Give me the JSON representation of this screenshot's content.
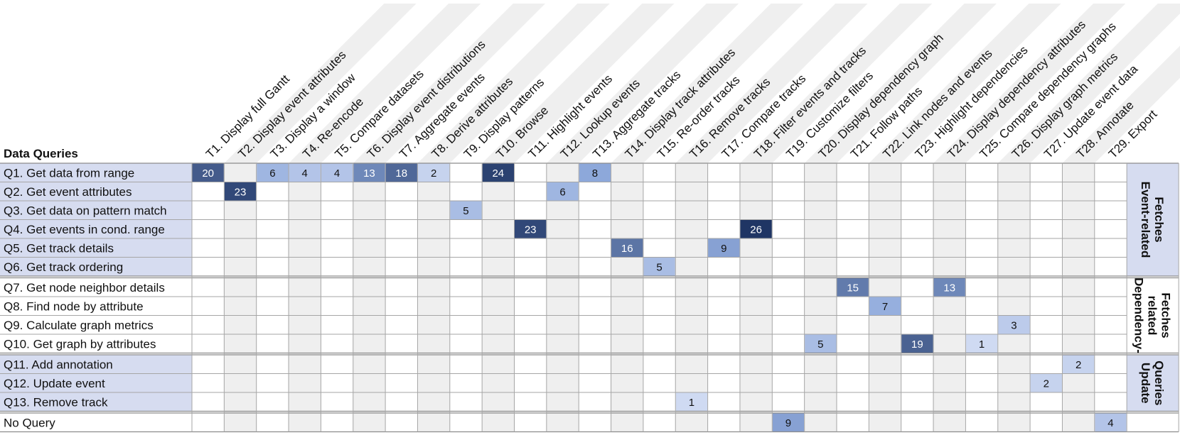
{
  "title": "Data Queries",
  "tasks": [
    "T1. Display full Gantt",
    "T2. Display event attributes",
    "T3. Display a window",
    "T4. Re-encode",
    "T5. Compare datasets",
    "T6. Display event distributions",
    "T7. Aggregate events",
    "T8. Derive attributes",
    "T9. Display patterns",
    "T10. Browse",
    "T11. Highlight events",
    "T12. Lookup events",
    "T13. Aggregate tracks",
    "T14. Display track attributes",
    "T15. Re-order tracks",
    "T16. Remove tracks",
    "T17. Compare tracks",
    "T18. Filter events and tracks",
    "T19. Customize filters",
    "T20. Display dependency graph",
    "T21. Follow paths",
    "T22. Link nodes and events",
    "T23. Highlight dependencies",
    "T24. Display dependency attributes",
    "T25. Compare dependency graphs",
    "T26. Display graph metrics",
    "T27. Update event data",
    "T28. Annotate",
    "T29. Export"
  ],
  "groups": [
    {
      "label_lines": [
        "Event-related",
        "Fetches"
      ],
      "shaded": true,
      "queries": [
        {
          "label": "Q1. Get data from range",
          "cells": [
            [
              1,
              "20"
            ],
            [
              3,
              "6"
            ],
            [
              4,
              "4"
            ],
            [
              5,
              "4"
            ],
            [
              6,
              "13"
            ],
            [
              7,
              "18"
            ],
            [
              8,
              "2"
            ],
            [
              10,
              "24"
            ],
            [
              13,
              "8"
            ]
          ]
        },
        {
          "label": "Q2. Get event attributes",
          "cells": [
            [
              2,
              "23"
            ],
            [
              12,
              "6"
            ]
          ]
        },
        {
          "label": "Q3. Get data on pattern match",
          "cells": [
            [
              9,
              "5"
            ]
          ]
        },
        {
          "label": "Q4. Get events in cond. range",
          "cells": [
            [
              11,
              "23"
            ],
            [
              18,
              "26"
            ]
          ]
        },
        {
          "label": "Q5. Get track details",
          "cells": [
            [
              14,
              "16"
            ],
            [
              17,
              "9"
            ]
          ]
        },
        {
          "label": "Q6. Get track ordering",
          "cells": [
            [
              15,
              "5"
            ]
          ]
        }
      ]
    },
    {
      "label_lines": [
        "Dependency-",
        "related",
        "Fetches"
      ],
      "shaded": false,
      "queries": [
        {
          "label": "Q7. Get node neighbor details",
          "cells": [
            [
              21,
              "15"
            ],
            [
              24,
              "13"
            ]
          ]
        },
        {
          "label": "Q8. Find node by attribute",
          "cells": [
            [
              22,
              "7"
            ]
          ]
        },
        {
          "label": "Q9. Calculate graph metrics",
          "cells": [
            [
              26,
              "3"
            ]
          ]
        },
        {
          "label": "Q10. Get graph by attributes",
          "cells": [
            [
              20,
              "5"
            ],
            [
              23,
              "19"
            ],
            [
              25,
              "1"
            ]
          ]
        }
      ]
    },
    {
      "label_lines": [
        "Update",
        "Queries"
      ],
      "shaded": true,
      "queries": [
        {
          "label": "Q11. Add annotation",
          "cells": [
            [
              28,
              "2"
            ]
          ]
        },
        {
          "label": "Q12. Update event",
          "cells": [
            [
              27,
              "2"
            ]
          ]
        },
        {
          "label": "Q13. Remove track",
          "cells": [
            [
              16,
              "1"
            ]
          ]
        }
      ]
    },
    {
      "label_lines": [],
      "shaded": false,
      "queries": [
        {
          "label": "No Query",
          "cells": [
            [
              19,
              "9"
            ],
            [
              29,
              "4"
            ]
          ]
        }
      ]
    }
  ],
  "colors": {
    "row_label_fill": "#d6dcf0",
    "column_band": "#efefef",
    "grid_line": "#a6a6a6",
    "separator_line": "#8c8c8c",
    "scale_low": "#d9e1f5",
    "scale_mid": "#8ea9db",
    "scale_high": "#1f3564"
  }
}
